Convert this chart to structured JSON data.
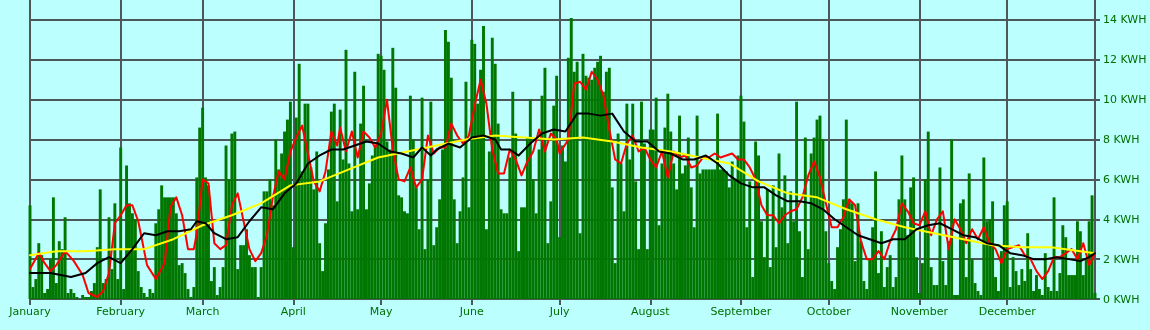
{
  "chart_data": {
    "type": "bar",
    "x": [
      "--01-01",
      "--01-02",
      "--01-03",
      "--01-04",
      "--01-05",
      "--01-06",
      "--01-07",
      "--01-08",
      "--01-09",
      "--01-10",
      "--01-11",
      "--01-12",
      "--01-13",
      "--01-14",
      "--01-15",
      "--01-16",
      "--01-17",
      "--01-18",
      "--01-19",
      "--01-20",
      "--01-21",
      "--01-22",
      "--01-23",
      "--01-24",
      "--01-25",
      "--01-26",
      "--01-27",
      "--01-28",
      "--01-29",
      "--01-30",
      "--01-31",
      "--02-01",
      "--02-02",
      "--02-03",
      "--02-04",
      "--02-05",
      "--02-06",
      "--02-07",
      "--02-08",
      "--02-09",
      "--02-10",
      "--02-11",
      "--02-12",
      "--02-13",
      "--02-14",
      "--02-15",
      "--02-16",
      "--02-17",
      "--02-18",
      "--02-19",
      "--02-20",
      "--02-21",
      "--02-22",
      "--02-23",
      "--02-24",
      "--02-25",
      "--02-26",
      "--02-27",
      "--02-28",
      "--03-01",
      "--03-02",
      "--03-03",
      "--03-04",
      "--03-05",
      "--03-06",
      "--03-07",
      "--03-08",
      "--03-09",
      "--03-10",
      "--03-11",
      "--03-12",
      "--03-13",
      "--03-14",
      "--03-15",
      "--03-16",
      "--03-17",
      "--03-18",
      "--03-19",
      "--03-20",
      "--03-21",
      "--03-22",
      "--03-23",
      "--03-24",
      "--03-25",
      "--03-26",
      "--03-27",
      "--03-28",
      "--03-29",
      "--03-30",
      "--03-31",
      "--04-01",
      "--04-02",
      "--04-03",
      "--04-04",
      "--04-05",
      "--04-06",
      "--04-07",
      "--04-08",
      "--04-09",
      "--04-10",
      "--04-11",
      "--04-12",
      "--04-13",
      "--04-14",
      "--04-15",
      "--04-16",
      "--04-17",
      "--04-18",
      "--04-19",
      "--04-20",
      "--04-21",
      "--04-22",
      "--04-23",
      "--04-24",
      "--04-25",
      "--04-26",
      "--04-27",
      "--04-28",
      "--04-29",
      "--04-30",
      "--05-01",
      "--05-02",
      "--05-03",
      "--05-04",
      "--05-05",
      "--05-06",
      "--05-07",
      "--05-08",
      "--05-09",
      "--05-10",
      "--05-11",
      "--05-12",
      "--05-13",
      "--05-14",
      "--05-15",
      "--05-16",
      "--05-17",
      "--05-18",
      "--05-19",
      "--05-20",
      "--05-21",
      "--05-22",
      "--05-23",
      "--05-24",
      "--05-25",
      "--05-26",
      "--05-27",
      "--05-28",
      "--05-29",
      "--05-30",
      "--05-31",
      "--06-01",
      "--06-02",
      "--06-03",
      "--06-04",
      "--06-05",
      "--06-06",
      "--06-07",
      "--06-08",
      "--06-09",
      "--06-10",
      "--06-11",
      "--06-12",
      "--06-13",
      "--06-14",
      "--06-15",
      "--06-16",
      "--06-17",
      "--06-18",
      "--06-19",
      "--06-20",
      "--06-21",
      "--06-22",
      "--06-23",
      "--06-24",
      "--06-25",
      "--06-26",
      "--06-27",
      "--06-28",
      "--06-29",
      "--06-30",
      "--07-01",
      "--07-02",
      "--07-03",
      "--07-04",
      "--07-05",
      "--07-06",
      "--07-07",
      "--07-08",
      "--07-09",
      "--07-10",
      "--07-11",
      "--07-12",
      "--07-13",
      "--07-14",
      "--07-15",
      "--07-16",
      "--07-17",
      "--07-18",
      "--07-19",
      "--07-20",
      "--07-21",
      "--07-22",
      "--07-23",
      "--07-24",
      "--07-25",
      "--07-26",
      "--07-27",
      "--07-28",
      "--07-29",
      "--07-30",
      "--07-31",
      "--08-01",
      "--08-02",
      "--08-03",
      "--08-04",
      "--08-05",
      "--08-06",
      "--08-07",
      "--08-08",
      "--08-09",
      "--08-10",
      "--08-11",
      "--08-12",
      "--08-13",
      "--08-14",
      "--08-15",
      "--08-16",
      "--08-17",
      "--08-18",
      "--08-19",
      "--08-20",
      "--08-21",
      "--08-22",
      "--08-23",
      "--08-24",
      "--08-25",
      "--08-26",
      "--08-27",
      "--08-28",
      "--08-29",
      "--08-30",
      "--08-31",
      "--09-01",
      "--09-02",
      "--09-03",
      "--09-04",
      "--09-05",
      "--09-06",
      "--09-07",
      "--09-08",
      "--09-09",
      "--09-10",
      "--09-11",
      "--09-12",
      "--09-13",
      "--09-14",
      "--09-15",
      "--09-16",
      "--09-17",
      "--09-18",
      "--09-19",
      "--09-20",
      "--09-21",
      "--09-22",
      "--09-23",
      "--09-24",
      "--09-25",
      "--09-26",
      "--09-27",
      "--09-28",
      "--09-29",
      "--09-30",
      "--10-01",
      "--10-02",
      "--10-03",
      "--10-04",
      "--10-05",
      "--10-06",
      "--10-07",
      "--10-08",
      "--10-09",
      "--10-10",
      "--10-11",
      "--10-12",
      "--10-13",
      "--10-14",
      "--10-15",
      "--10-16",
      "--10-17",
      "--10-18",
      "--10-19",
      "--10-20",
      "--10-21",
      "--10-22",
      "--10-23",
      "--10-24",
      "--10-25",
      "--10-26",
      "--10-27",
      "--10-28",
      "--10-29",
      "--10-30",
      "--10-31",
      "--11-01",
      "--11-02",
      "--11-03",
      "--11-04",
      "--11-05",
      "--11-06",
      "--11-07",
      "--11-08",
      "--11-09",
      "--11-10",
      "--11-11",
      "--11-12",
      "--11-13",
      "--11-14",
      "--11-15",
      "--11-16",
      "--11-17",
      "--11-18",
      "--11-19",
      "--11-20",
      "--11-21",
      "--11-22",
      "--11-23",
      "--11-24",
      "--11-25",
      "--11-26",
      "--11-27",
      "--11-28",
      "--11-29",
      "--11-30",
      "--12-01",
      "--12-02",
      "--12-03",
      "--12-04",
      "--12-05",
      "--12-06",
      "--12-07",
      "--12-08",
      "--12-09",
      "--12-10",
      "--12-11",
      "--12-12",
      "--12-13",
      "--12-14",
      "--12-15",
      "--12-16",
      "--12-17",
      "--12-18",
      "--12-19",
      "--12-20",
      "--12-21",
      "--12-22",
      "--12-23",
      "--12-24",
      "--12-25",
      "--12-26",
      "--12-27",
      "--12-28",
      "--12-29",
      "--12-30",
      "--12-31"
    ],
    "series": [
      {
        "color": "#007700",
        "values": [
          4.7,
          0.6,
          1.0,
          2.8,
          2.2,
          0.3,
          0.5,
          2.0,
          5.1,
          0.8,
          2.9,
          2.5,
          4.1,
          0.3,
          0.5,
          0.3,
          0.1,
          0.0,
          0.2,
          0.1,
          0.1,
          0.4,
          0.8,
          2.6,
          5.5,
          0.8,
          1.0,
          4.1,
          1.5,
          4.8,
          1.0,
          7.6,
          0.5,
          6.7,
          4.8,
          4.3,
          4.0,
          1.4,
          0.6,
          0.3,
          0.1,
          0.5,
          0.3,
          3.8,
          4.5,
          5.7,
          5.1,
          5.1,
          5.1,
          5.1,
          4.3,
          1.7,
          1.8,
          1.3,
          0.5,
          0.1,
          0.6,
          6.1,
          8.6,
          9.6,
          6.1,
          5.7,
          0.9,
          1.6,
          0.2,
          0.6,
          1.6,
          7.7,
          6.0,
          8.3,
          8.4,
          1.5,
          2.7,
          2.7,
          3.5,
          2.2,
          1.6,
          1.6,
          0.1,
          1.6,
          5.4,
          5.4,
          6.0,
          4.7,
          8.0,
          6.5,
          7.3,
          8.4,
          9.0,
          9.9,
          2.6,
          9.1,
          11.8,
          6.4,
          9.8,
          9.8,
          6.6,
          5.5,
          7.4,
          2.8,
          1.4,
          3.8,
          6.5,
          9.4,
          9.8,
          4.9,
          9.5,
          7.0,
          12.5,
          6.8,
          4.4,
          11.4,
          4.5,
          8.8,
          10.7,
          4.5,
          5.8,
          7.2,
          7.7,
          12.3,
          12.2,
          11.5,
          7.9,
          7.5,
          12.6,
          10.6,
          5.2,
          5.1,
          4.4,
          4.3,
          10.2,
          8.0,
          5.6,
          3.5,
          10.1,
          2.5,
          6.0,
          9.9,
          2.7,
          3.6,
          5.0,
          7.5,
          13.5,
          12.9,
          11.1,
          5.0,
          2.8,
          4.4,
          6.1,
          10.9,
          4.6,
          13.0,
          12.8,
          9.8,
          11.5,
          13.7,
          3.5,
          7.4,
          13.1,
          11.8,
          8.8,
          4.5,
          4.3,
          4.3,
          7.1,
          10.4,
          8.3,
          2.4,
          4.6,
          4.6,
          8.1,
          10.0,
          6.0,
          4.3,
          7.5,
          10.2,
          11.6,
          2.8,
          4.9,
          9.7,
          11.2,
          3.1,
          7.7,
          6.9,
          12.1,
          14.1,
          11.4,
          11.9,
          3.3,
          12.3,
          11.2,
          11.1,
          11.0,
          11.6,
          11.9,
          12.2,
          10.4,
          11.4,
          11.6,
          5.6,
          1.8,
          8.3,
          6.8,
          4.4,
          9.8,
          7.0,
          9.8,
          5.9,
          2.5,
          9.9,
          7.8,
          2.5,
          8.5,
          8.5,
          10.1,
          3.7,
          6.8,
          8.6,
          10.3,
          8.4,
          6.8,
          5.5,
          9.2,
          6.3,
          6.7,
          8.1,
          5.6,
          3.6,
          9.2,
          6.3,
          6.5,
          6.5,
          6.5,
          6.5,
          6.5,
          9.3,
          6.5,
          6.5,
          6.4,
          5.6,
          6.9,
          6.0,
          7.2,
          10.2,
          8.9,
          3.6,
          5.9,
          1.1,
          7.9,
          7.2,
          3.9,
          2.1,
          5.5,
          1.6,
          5.7,
          2.6,
          7.3,
          4.6,
          6.2,
          2.8,
          5.4,
          3.9,
          9.9,
          3.4,
          1.1,
          8.1,
          2.5,
          7.3,
          8.1,
          9.0,
          9.2,
          8.0,
          3.4,
          1.8,
          0.9,
          0.5,
          2.6,
          3.5,
          5.0,
          9.0,
          5.0,
          4.8,
          1.9,
          4.8,
          2.9,
          0.9,
          0.5,
          2.0,
          3.6,
          6.4,
          1.3,
          3.4,
          0.6,
          1.6,
          2.2,
          0.6,
          1.1,
          5.0,
          7.2,
          5.0,
          3.2,
          5.6,
          6.1,
          2.1,
          0.3,
          1.8,
          6.0,
          8.4,
          1.6,
          0.7,
          0.7,
          6.6,
          1.9,
          0.7,
          2.9,
          8.0,
          0.2,
          0.2,
          4.8,
          5.0,
          1.1,
          6.3,
          2.0,
          0.8,
          0.4,
          0.2,
          7.1,
          3.9,
          4.0,
          4.9,
          1.1,
          0.4,
          2.4,
          4.7,
          4.9,
          0.6,
          2.1,
          1.4,
          0.7,
          1.5,
          0.9,
          3.3,
          1.5,
          0.4,
          1.2,
          0.5,
          0.2,
          2.3,
          0.6,
          0.4,
          5.1,
          0.4,
          1.3,
          3.7,
          3.1,
          1.2,
          1.2,
          1.2,
          3.9,
          3.4,
          1.2,
          2.0,
          3.9,
          5.2,
          0.3
        ]
      },
      {
        "type": "line",
        "color": "#ff0000",
        "x": [
          "--01-01",
          "--01-04",
          "--01-06",
          "--01-08",
          "--01-10",
          "--01-13",
          "--01-16",
          "--01-19",
          "--01-21",
          "--01-24",
          "--01-26",
          "--01-28",
          "--01-30",
          "--02-01",
          "--02-03",
          "--02-05",
          "--02-07",
          "--02-10",
          "--02-13",
          "--02-16",
          "--02-18",
          "--02-20",
          "--02-22",
          "--02-24",
          "--02-26",
          "--02-27",
          "--03-01",
          "--03-03",
          "--03-05",
          "--03-07",
          "--03-09",
          "--03-11",
          "--03-13",
          "--03-15",
          "--03-17",
          "--03-19",
          "--03-21",
          "--03-23",
          "--03-25",
          "--03-27",
          "--03-29",
          "--03-31",
          "--04-02",
          "--04-04",
          "--04-06",
          "--04-08",
          "--04-10",
          "--04-12",
          "--04-14",
          "--04-16",
          "--04-17",
          "--04-19",
          "--04-21",
          "--04-23",
          "--04-25",
          "--04-27",
          "--04-29",
          "--05-01",
          "--05-03",
          "--05-05",
          "--05-07",
          "--05-09",
          "--05-11",
          "--05-13",
          "--05-15",
          "--05-17",
          "--05-19",
          "--05-21",
          "--05-23",
          "--05-25",
          "--05-27",
          "--05-29",
          "--05-31",
          "--06-02",
          "--06-04",
          "--06-06",
          "--06-08",
          "--06-10",
          "--06-12",
          "--06-14",
          "--06-16",
          "--06-18",
          "--06-20",
          "--06-22",
          "--06-24",
          "--06-26",
          "--06-28",
          "--06-30",
          "--07-01",
          "--07-04",
          "--07-06",
          "--07-08",
          "--07-10",
          "--07-12",
          "--07-14",
          "--07-16",
          "--07-18",
          "--07-20",
          "--07-22",
          "--07-24",
          "--07-26",
          "--07-28",
          "--07-30",
          "--08-01",
          "--08-03",
          "--08-05",
          "--08-07",
          "--08-09",
          "--08-11",
          "--08-13",
          "--08-15",
          "--08-17",
          "--08-19",
          "--08-21",
          "--08-23",
          "--08-25",
          "--08-27",
          "--08-29",
          "--08-31",
          "--09-02",
          "--09-04",
          "--09-06",
          "--09-08",
          "--09-10",
          "--09-12",
          "--09-14",
          "--09-16",
          "--09-18",
          "--09-20",
          "--09-22",
          "--09-24",
          "--09-26",
          "--09-28",
          "--09-30",
          "--10-02",
          "--10-04",
          "--10-06",
          "--10-08",
          "--10-10",
          "--10-12",
          "--10-14",
          "--10-16",
          "--10-18",
          "--10-20",
          "--10-22",
          "--10-24",
          "--10-26",
          "--10-28",
          "--10-30",
          "--11-01",
          "--11-03",
          "--11-05",
          "--11-07",
          "--11-09",
          "--11-11",
          "--11-13",
          "--11-15",
          "--11-17",
          "--11-19",
          "--11-21",
          "--11-23",
          "--11-25",
          "--11-27",
          "--11-29",
          "--12-01",
          "--12-03",
          "--12-05",
          "--12-07",
          "--12-09",
          "--12-11",
          "--12-13",
          "--12-15",
          "--12-17",
          "--12-19",
          "--12-21",
          "--12-23",
          "--12-25",
          "--12-27",
          "--12-29",
          "--12-31"
        ],
        "values": [
          1.5,
          2.3,
          1.8,
          1.4,
          1.7,
          2.4,
          1.9,
          1.2,
          0.3,
          0.1,
          0.4,
          1.3,
          3.8,
          4.2,
          4.7,
          4.7,
          3.9,
          1.7,
          1.0,
          1.8,
          4.6,
          5.1,
          4.2,
          2.5,
          2.5,
          3.3,
          6.0,
          5.8,
          2.8,
          2.5,
          2.7,
          4.7,
          5.3,
          3.9,
          2.5,
          1.9,
          2.3,
          3.2,
          5.1,
          6.4,
          6.0,
          7.4,
          8.1,
          8.7,
          7.3,
          5.9,
          5.4,
          6.4,
          8.4,
          7.7,
          8.6,
          7.4,
          8.4,
          7.1,
          8.4,
          8.1,
          7.6,
          8.3,
          10.0,
          7.5,
          6.0,
          5.9,
          6.6,
          5.6,
          6.0,
          8.2,
          7.3,
          7.6,
          7.6,
          8.8,
          8.2,
          7.8,
          8.2,
          9.7,
          11.0,
          9.8,
          7.5,
          6.3,
          6.3,
          7.5,
          7.0,
          6.2,
          6.9,
          7.4,
          8.5,
          7.4,
          8.3,
          8.0,
          7.3,
          8.0,
          10.8,
          10.9,
          10.5,
          11.4,
          11.0,
          10.2,
          8.5,
          7.0,
          6.8,
          7.8,
          8.2,
          7.4,
          7.6,
          7.0,
          6.6,
          7.4,
          6.1,
          7.4,
          7.1,
          7.2,
          6.6,
          6.7,
          7.1,
          7.1,
          7.3,
          7.1,
          7.2,
          7.3,
          7.0,
          7.0,
          6.6,
          6.0,
          4.7,
          4.2,
          4.2,
          3.8,
          4.2,
          4.4,
          4.5,
          5.1,
          6.2,
          6.9,
          6.1,
          4.8,
          3.6,
          3.6,
          4.1,
          5.0,
          4.7,
          2.9,
          2.0,
          2.0,
          2.4,
          2.0,
          2.9,
          3.5,
          4.8,
          4.4,
          3.8,
          3.7,
          4.4,
          3.2,
          4.0,
          4.4,
          2.5,
          4.0,
          3.5,
          2.8,
          3.5,
          3.0,
          3.6,
          2.8,
          2.5,
          1.8,
          2.5,
          2.6,
          2.7,
          2.2,
          2.0,
          1.4,
          1.0,
          1.4,
          2.1,
          2.1,
          2.3,
          2.5,
          2.0,
          2.8,
          1.7,
          2.3
        ]
      },
      {
        "type": "line",
        "color": "#ffff00",
        "x": [
          "--01-01",
          "--01-10",
          "--01-20",
          "--01-30",
          "--02-09",
          "--02-19",
          "--03-01",
          "--03-11",
          "--03-21",
          "--03-31",
          "--04-10",
          "--04-20",
          "--04-30",
          "--05-10",
          "--05-20",
          "--05-30",
          "--06-09",
          "--06-19",
          "--06-29",
          "--07-09",
          "--07-19",
          "--07-29",
          "--08-08",
          "--08-18",
          "--08-28",
          "--09-07",
          "--09-17",
          "--09-27",
          "--10-07",
          "--10-17",
          "--10-27",
          "--11-06",
          "--11-16",
          "--11-26",
          "--12-06",
          "--12-16",
          "--12-26",
          "--12-31"
        ],
        "values": [
          2.2,
          2.4,
          2.4,
          2.5,
          2.5,
          3.0,
          3.7,
          4.2,
          4.8,
          5.7,
          5.9,
          6.5,
          7.1,
          7.4,
          7.7,
          8.0,
          8.2,
          8.1,
          8.0,
          8.1,
          7.9,
          7.6,
          7.4,
          7.1,
          6.8,
          5.9,
          5.3,
          5.1,
          4.5,
          4.0,
          3.6,
          3.3,
          3.0,
          2.7,
          2.6,
          2.6,
          2.4,
          2.3
        ]
      },
      {
        "type": "line",
        "color": "#000000",
        "x": [
          "--01-01",
          "--01-08",
          "--01-15",
          "--01-20",
          "--01-24",
          "--01-28",
          "--02-01",
          "--02-05",
          "--02-09",
          "--02-13",
          "--02-17",
          "--02-21",
          "--02-25",
          "--02-27",
          "--03-02",
          "--03-05",
          "--03-09",
          "--03-13",
          "--03-17",
          "--03-21",
          "--03-25",
          "--03-29",
          "--04-02",
          "--04-06",
          "--04-10",
          "--04-14",
          "--04-18",
          "--04-22",
          "--04-26",
          "--04-30",
          "--05-04",
          "--05-08",
          "--05-12",
          "--05-15",
          "--05-18",
          "--05-20",
          "--05-24",
          "--05-28",
          "--06-01",
          "--06-05",
          "--06-09",
          "--06-11",
          "--06-14",
          "--06-17",
          "--06-21",
          "--06-25",
          "--06-29",
          "--07-03",
          "--07-07",
          "--07-11",
          "--07-15",
          "--07-19",
          "--07-23",
          "--07-27",
          "--07-31",
          "--08-04",
          "--08-08",
          "--08-12",
          "--08-16",
          "--08-20",
          "--08-24",
          "--08-28",
          "--09-01",
          "--09-05",
          "--09-09",
          "--09-13",
          "--09-17",
          "--09-21",
          "--09-25",
          "--09-29",
          "--10-03",
          "--10-07",
          "--10-11",
          "--10-15",
          "--10-19",
          "--10-23",
          "--10-27",
          "--10-31",
          "--11-04",
          "--11-08",
          "--11-12",
          "--11-16",
          "--11-20",
          "--11-24",
          "--11-28",
          "--12-02",
          "--12-06",
          "--12-10",
          "--12-14",
          "--12-18",
          "--12-22",
          "--12-26",
          "--12-29",
          "--12-31"
        ],
        "values": [
          1.3,
          1.3,
          1.1,
          1.3,
          1.8,
          2.1,
          1.8,
          2.5,
          3.3,
          3.2,
          3.4,
          3.4,
          3.5,
          3.9,
          3.8,
          3.3,
          3.0,
          3.1,
          3.9,
          4.6,
          4.5,
          5.3,
          5.8,
          6.8,
          7.2,
          7.5,
          7.5,
          7.7,
          7.9,
          7.8,
          7.4,
          7.3,
          7.1,
          7.6,
          7.2,
          7.5,
          7.8,
          7.6,
          8.1,
          8.2,
          8.0,
          7.5,
          7.5,
          7.2,
          7.8,
          8.3,
          8.5,
          8.4,
          9.3,
          9.3,
          9.2,
          9.3,
          8.4,
          7.9,
          7.9,
          7.4,
          7.3,
          7.0,
          7.0,
          7.2,
          6.8,
          6.2,
          5.8,
          5.6,
          5.6,
          5.2,
          4.9,
          4.9,
          4.8,
          4.5,
          4.0,
          3.6,
          3.2,
          3.0,
          2.8,
          3.0,
          3.0,
          3.5,
          3.7,
          3.8,
          3.5,
          3.2,
          3.1,
          2.8,
          2.7,
          2.3,
          2.2,
          2.0,
          2.0,
          2.1,
          2.0,
          1.9,
          2.1,
          2.3
        ]
      }
    ],
    "xlim": [
      "--01-01",
      "--12-31"
    ],
    "xticks": [
      {
        "value": "--01-01",
        "label": "January"
      },
      {
        "value": "--02-01",
        "label": "February"
      },
      {
        "value": "--03-01",
        "label": "March"
      },
      {
        "value": "--04-01",
        "label": "April"
      },
      {
        "value": "--05-01",
        "label": "May"
      },
      {
        "value": "--06-01",
        "label": "June"
      },
      {
        "value": "--07-01",
        "label": "July"
      },
      {
        "value": "--08-01",
        "label": "August"
      },
      {
        "value": "--09-01",
        "label": "September"
      },
      {
        "value": "--10-01",
        "label": "October"
      },
      {
        "value": "--11-01",
        "label": "November"
      },
      {
        "value": "--12-01",
        "label": "December"
      }
    ],
    "ylim": [
      0,
      15
    ],
    "yticks": [
      {
        "value": 0,
        "label": "0 KWH"
      },
      {
        "value": 2,
        "label": "2 KWH"
      },
      {
        "value": 4,
        "label": "4 KWH"
      },
      {
        "value": 6,
        "label": "6 KWH"
      },
      {
        "value": 8,
        "label": "8 KWH"
      },
      {
        "value": 10,
        "label": "10 KWH"
      },
      {
        "value": 12,
        "label": "12 KWH"
      },
      {
        "value": 14,
        "label": "14 KWH"
      }
    ],
    "grid": true,
    "line_style": "solid"
  }
}
